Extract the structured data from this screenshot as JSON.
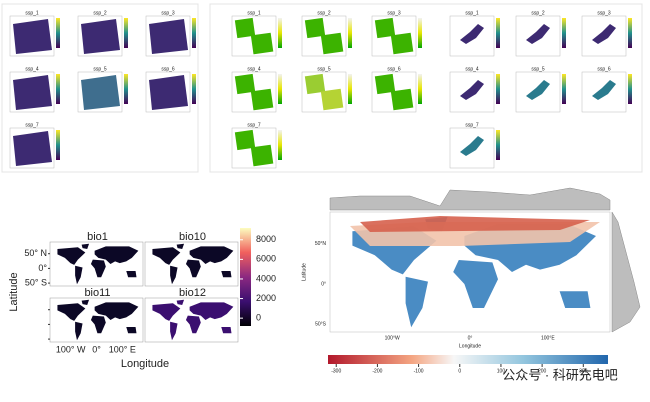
{
  "top_panels": {
    "group_a": [
      "ssp_1",
      "ssp_2",
      "ssp_3",
      "ssp_4",
      "ssp_5",
      "ssp_6",
      "ssp_7"
    ],
    "group_b": [
      "ssp_1",
      "ssp_2",
      "ssp_3",
      "ssp_4",
      "ssp_5",
      "ssp_6",
      "ssp_7"
    ],
    "group_c": [
      "ssp_1",
      "ssp_2",
      "ssp_3",
      "ssp_4",
      "ssp_5",
      "ssp_6",
      "ssp_7"
    ]
  },
  "facet_map": {
    "panels": [
      "bio1",
      "bio10",
      "bio11",
      "bio12"
    ],
    "y_label": "Latitude",
    "x_label": "Longitude",
    "y_ticks": [
      "50° N",
      "0°",
      "50° S"
    ],
    "x_ticks": [
      "100° W",
      "0°",
      "100° E"
    ],
    "colorbar_range": [
      -800,
      9200
    ],
    "colorbar_ticks": [
      0,
      2000,
      4000,
      6000,
      8000
    ]
  },
  "diff_map": {
    "y_label": "Latitude",
    "x_label": "Longitude",
    "y_ticks": [
      "50°N",
      "0°",
      "50°S"
    ],
    "x_ticks": [
      "100°W",
      "0°",
      "100°E"
    ],
    "colorbar_range": [
      -320,
      360
    ],
    "colorbar_ticks": [
      -300,
      -200,
      -100,
      0,
      100,
      200,
      300
    ]
  },
  "watermark": "公众号 · 科研充电吧"
}
